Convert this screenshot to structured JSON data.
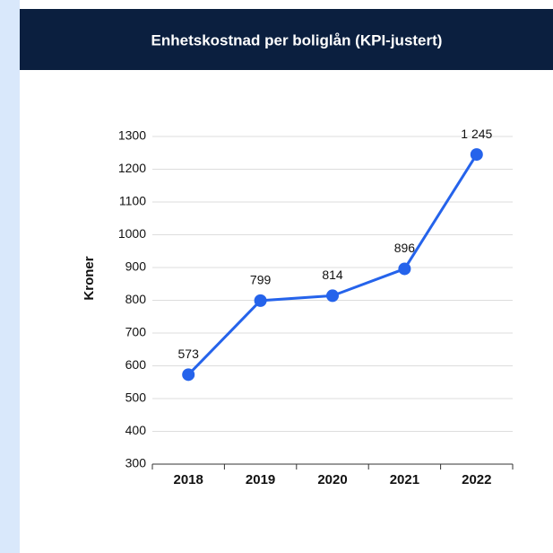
{
  "chart_data": {
    "type": "line",
    "title": "Enhetskostnad per boliglån (KPI-justert)",
    "y_label": "Kroner",
    "categories": [
      "2018",
      "2019",
      "2020",
      "2021",
      "2022"
    ],
    "values": [
      573,
      799,
      814,
      896,
      1245
    ],
    "value_labels": [
      "573",
      "799",
      "814",
      "896",
      "1 245"
    ],
    "color": "#2563eb",
    "ylim": [
      300,
      1300
    ],
    "yticks": [
      300,
      400,
      500,
      600,
      700,
      800,
      900,
      1000,
      1100,
      1200,
      1300
    ],
    "grid": true
  }
}
